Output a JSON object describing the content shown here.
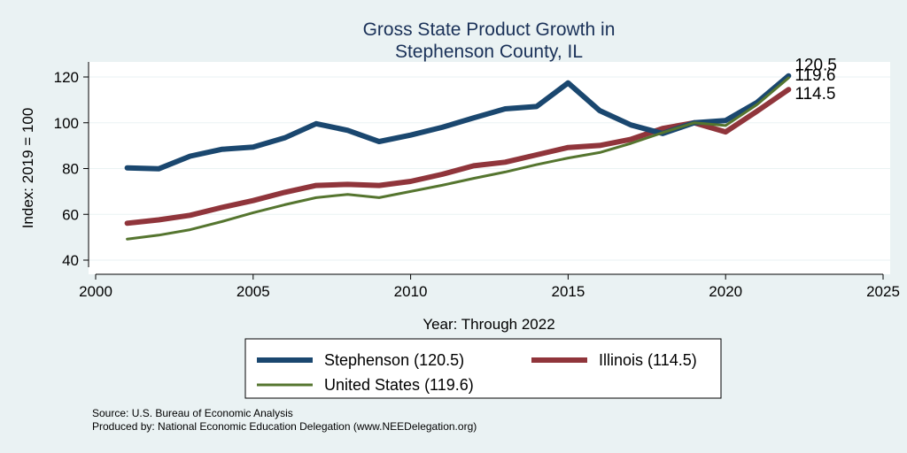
{
  "chart_data": {
    "type": "line",
    "title": [
      "Gross State Product Growth in",
      "Stephenson County, IL"
    ],
    "xlabel": "Year: Through 2022",
    "ylabel": "Index: 2019 = 100",
    "xlim": [
      2000,
      2025
    ],
    "ylim": [
      40,
      120
    ],
    "x_ticks": [
      2000,
      2005,
      2010,
      2015,
      2020,
      2025
    ],
    "y_ticks": [
      40,
      60,
      80,
      100,
      120
    ],
    "grid": "horizontal",
    "legend_position": "bottom",
    "x": [
      2001,
      2002,
      2003,
      2004,
      2005,
      2006,
      2007,
      2008,
      2009,
      2010,
      2011,
      2012,
      2013,
      2014,
      2015,
      2016,
      2017,
      2018,
      2019,
      2020,
      2021,
      2022
    ],
    "series": [
      {
        "name": "Stephenson",
        "legend_label": "Stephenson  (120.5)",
        "end_label": "120.5",
        "color": "#1a476f",
        "values": [
          80.3,
          79.9,
          85.4,
          88.4,
          89.4,
          93.4,
          99.6,
          96.7,
          91.8,
          94.6,
          98.0,
          102.1,
          106.1,
          107.1,
          117.4,
          105.3,
          99.0,
          95.3,
          100.0,
          101.0,
          108.9,
          120.5
        ]
      },
      {
        "name": "Illinois",
        "legend_label": "Illinois (114.5)",
        "end_label": "114.5",
        "color": "#90353b",
        "values": [
          56.1,
          57.6,
          59.6,
          63.0,
          66.0,
          69.6,
          72.6,
          73.1,
          72.6,
          74.4,
          77.5,
          81.2,
          82.8,
          86.0,
          89.2,
          90.1,
          92.8,
          97.5,
          100.0,
          96.0,
          105.1,
          114.5
        ]
      },
      {
        "name": "United States",
        "legend_label": "United States (119.6)",
        "end_label": "119.6",
        "color": "#55752f",
        "values": [
          49.2,
          50.9,
          53.3,
          56.8,
          60.7,
          64.2,
          67.3,
          68.7,
          67.3,
          70.0,
          72.7,
          75.7,
          78.5,
          81.7,
          84.6,
          87.0,
          91.0,
          95.7,
          100.0,
          98.8,
          108.0,
          119.6
        ]
      }
    ]
  },
  "footer": {
    "source": "Source: U.S. Bureau of Economic Analysis",
    "produced_by": "Produced by: National Economic Education Delegation (www.NEEDelegation.org)"
  }
}
